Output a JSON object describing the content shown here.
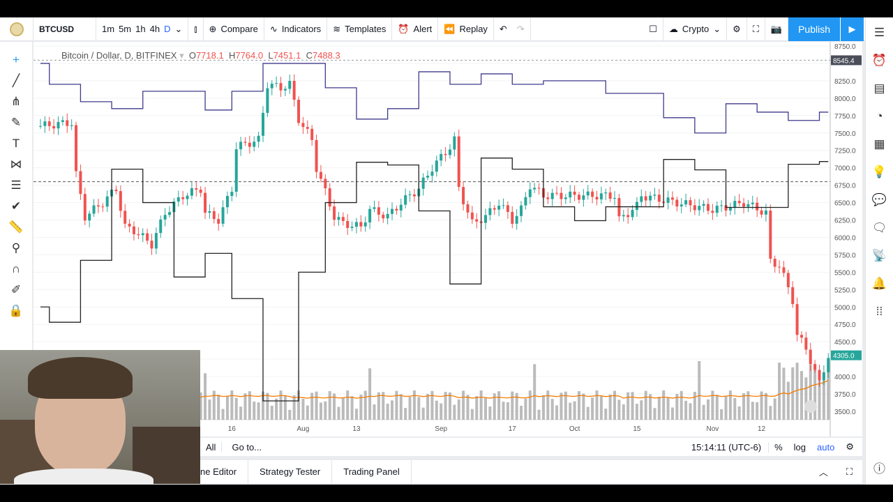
{
  "toolbar": {
    "symbol": "BTCUSD",
    "intervals": [
      "1m",
      "5m",
      "1h",
      "4h",
      "D"
    ],
    "active_interval": "D",
    "compare": "Compare",
    "indicators": "Indicators",
    "templates": "Templates",
    "alert": "Alert",
    "replay": "Replay",
    "market": "Crypto",
    "publish": "Publish"
  },
  "legend": {
    "title": "Bitcoin / Dollar, D, BITFINEX",
    "o_label": "O",
    "o": "7718.1",
    "h_label": "H",
    "h": "7764.0",
    "l_label": "L",
    "l": "7451.1",
    "c_label": "C",
    "c": "7488.3"
  },
  "price_axis": {
    "ticks": [
      "8750.0",
      "8250.0",
      "8000.0",
      "7750.0",
      "7500.0",
      "7250.0",
      "7000.0",
      "6750.0",
      "6500.0",
      "6250.0",
      "6000.0",
      "5750.0",
      "5500.0",
      "5250.0",
      "5000.0",
      "4750.0",
      "4500.0",
      "4000.0",
      "3750.0",
      "3500.0"
    ],
    "crosshair_label": "8545.4",
    "last_price_label": "4305.0",
    "last_price_color": "#26a69a"
  },
  "time_axis": {
    "ticks": [
      "16",
      "Aug",
      "13",
      "Sep",
      "17",
      "Oct",
      "15",
      "Nov",
      "12"
    ]
  },
  "bottom_bar": {
    "range_all": "All",
    "goto": "Go to...",
    "clock": "15:14:11 (UTC-6)",
    "percent": "%",
    "log": "log",
    "auto": "auto"
  },
  "bottom_tabs": [
    "ne Editor",
    "Strategy Tester",
    "Trading Panel"
  ],
  "colors": {
    "up": "#26a69a",
    "down": "#ef5350",
    "upper_channel": "#3f3a8c",
    "lower_channel": "#222222",
    "ma": "#f57c00",
    "volume": "#9e9e9e",
    "accent": "#2196f3"
  },
  "chart_data": {
    "type": "candlestick",
    "symbol": "Bitcoin / Dollar, D, BITFINEX",
    "ylim": [
      3400,
      8800
    ],
    "close_anchors": [
      [
        "06-03",
        7600
      ],
      [
        "06-10",
        7650
      ],
      [
        "06-11",
        6900
      ],
      [
        "06-13",
        6300
      ],
      [
        "06-17",
        6500
      ],
      [
        "06-20",
        6700
      ],
      [
        "06-22",
        6150
      ],
      [
        "06-24",
        6100
      ],
      [
        "06-28",
        5900
      ],
      [
        "07-01",
        6350
      ],
      [
        "07-05",
        6600
      ],
      [
        "07-09",
        6700
      ],
      [
        "07-10",
        6350
      ],
      [
        "07-13",
        6250
      ],
      [
        "07-16",
        6700
      ],
      [
        "07-17",
        7300
      ],
      [
        "07-22",
        7400
      ],
      [
        "07-24",
        8200
      ],
      [
        "07-27",
        8150
      ],
      [
        "07-29",
        8200
      ],
      [
        "07-31",
        7700
      ],
      [
        "08-03",
        7400
      ],
      [
        "08-04",
        7000
      ],
      [
        "08-08",
        6300
      ],
      [
        "08-10",
        6200
      ],
      [
        "08-14",
        6150
      ],
      [
        "08-16",
        6400
      ],
      [
        "08-20",
        6300
      ],
      [
        "08-23",
        6500
      ],
      [
        "08-27",
        6700
      ],
      [
        "08-30",
        7000
      ],
      [
        "09-03",
        7300
      ],
      [
        "09-04",
        7400
      ],
      [
        "09-05",
        6700
      ],
      [
        "09-08",
        6200
      ],
      [
        "09-11",
        6300
      ],
      [
        "09-14",
        6500
      ],
      [
        "09-17",
        6250
      ],
      [
        "09-19",
        6400
      ],
      [
        "09-21",
        6750
      ],
      [
        "09-24",
        6600
      ],
      [
        "10-01",
        6600
      ],
      [
        "10-10",
        6600
      ],
      [
        "10-11",
        6250
      ],
      [
        "10-15",
        6450
      ],
      [
        "10-16",
        6600
      ],
      [
        "10-20",
        6550
      ],
      [
        "11-01",
        6400
      ],
      [
        "11-05",
        6450
      ],
      [
        "11-08",
        6500
      ],
      [
        "11-13",
        6350
      ],
      [
        "11-14",
        5650
      ],
      [
        "11-16",
        5600
      ],
      [
        "11-19",
        5100
      ],
      [
        "11-20",
        4600
      ],
      [
        "11-22",
        4400
      ],
      [
        "11-25",
        3900
      ],
      [
        "11-27",
        4305
      ]
    ],
    "upper_channel_steps": [
      [
        "06-03",
        8500
      ],
      [
        "06-05",
        8200
      ],
      [
        "06-12",
        7950
      ],
      [
        "06-19",
        7850
      ],
      [
        "06-26",
        8100
      ],
      [
        "07-10",
        7830
      ],
      [
        "07-16",
        8100
      ],
      [
        "07-23",
        8500
      ],
      [
        "08-06",
        8150
      ],
      [
        "08-13",
        7700
      ],
      [
        "08-20",
        7850
      ],
      [
        "08-27",
        8380
      ],
      [
        "09-03",
        8200
      ],
      [
        "09-10",
        8350
      ],
      [
        "09-17",
        8200
      ],
      [
        "09-24",
        8250
      ],
      [
        "10-08",
        8070
      ],
      [
        "10-21",
        7720
      ],
      [
        "10-28",
        7500
      ],
      [
        "11-04",
        7920
      ],
      [
        "11-11",
        7800
      ],
      [
        "11-18",
        7680
      ],
      [
        "11-25",
        7800
      ]
    ],
    "lower_channel_steps": [
      [
        "06-03",
        5000
      ],
      [
        "06-05",
        4780
      ],
      [
        "06-12",
        5670
      ],
      [
        "06-19",
        6980
      ],
      [
        "06-26",
        6500
      ],
      [
        "07-03",
        5430
      ],
      [
        "07-10",
        5770
      ],
      [
        "07-16",
        5120
      ],
      [
        "07-23",
        3650
      ],
      [
        "07-31",
        5500
      ],
      [
        "08-06",
        6500
      ],
      [
        "08-13",
        7080
      ],
      [
        "08-20",
        7040
      ],
      [
        "08-27",
        6380
      ],
      [
        "09-03",
        5330
      ],
      [
        "09-10",
        7140
      ],
      [
        "09-17",
        6980
      ],
      [
        "09-24",
        6440
      ],
      [
        "10-01",
        6240
      ],
      [
        "10-08",
        6440
      ],
      [
        "10-21",
        7120
      ],
      [
        "10-28",
        6970
      ],
      [
        "11-04",
        6430
      ],
      [
        "11-18",
        7050
      ],
      [
        "11-25",
        7090
      ]
    ],
    "dashed_price_line": 6800
  }
}
